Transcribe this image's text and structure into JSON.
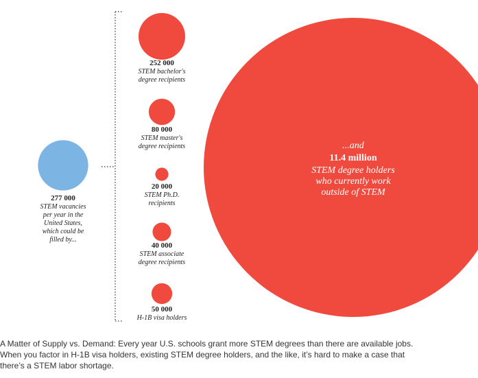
{
  "chart_data": {
    "type": "bubble",
    "demand": {
      "value": "277 000",
      "label_lines": [
        "STEM vacancies",
        "per year in the",
        "United States,",
        "which could be",
        "filled by..."
      ],
      "count": 277000,
      "color": "#7cb4e4"
    },
    "supply": [
      {
        "value": "252 000",
        "label_lines": [
          "STEM bachelor's",
          "degree recipients"
        ],
        "count": 252000
      },
      {
        "value": "80 000",
        "label_lines": [
          "STEM master's",
          "degree recipients"
        ],
        "count": 80000
      },
      {
        "value": "20 000",
        "label_lines": [
          "STEM Ph.D.",
          "recipients"
        ],
        "count": 20000
      },
      {
        "value": "40 000",
        "label_lines": [
          "STEM associate",
          "degree recipients"
        ],
        "count": 40000
      },
      {
        "value": "50 000",
        "label_lines": [
          "H-1B visa holders"
        ],
        "count": 50000
      }
    ],
    "outside": {
      "lead": "...and",
      "value": "11.4 million",
      "label_lines": [
        "STEM degree holders",
        "who currently work",
        "outside of STEM"
      ],
      "count": 11400000
    },
    "supply_color": "#f04a3e"
  },
  "caption": {
    "lines": [
      "A Matter of Supply vs. Demand: Every year U.S. schools grant more STEM degrees than there are available jobs.",
      "When you factor in H-1B visa holders, existing STEM degree holders, and the like, it’s hard to make a case that",
      "there’s a STEM labor shortage."
    ]
  }
}
